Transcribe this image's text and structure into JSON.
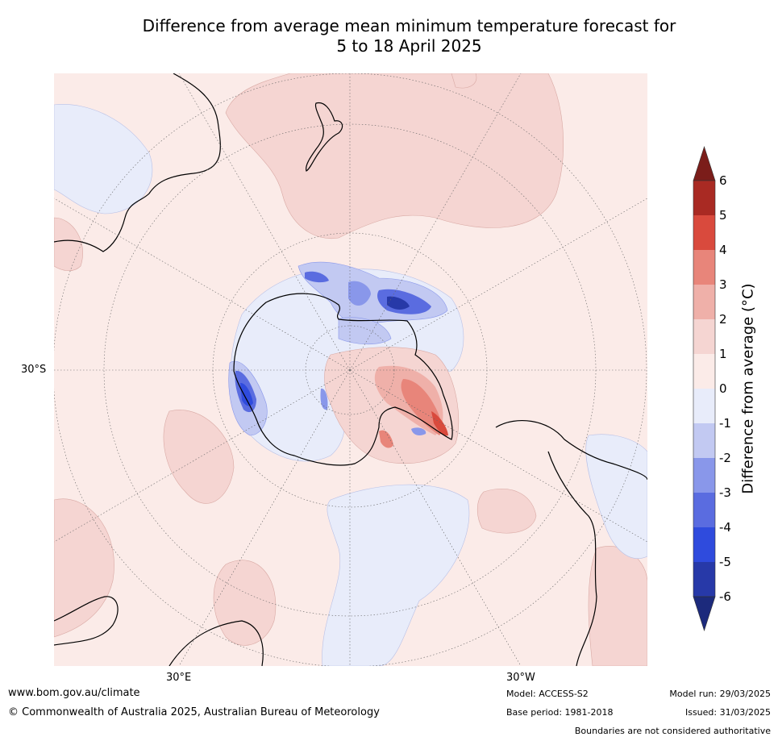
{
  "title": {
    "line1": "Difference from average mean minimum temperature forecast for",
    "line2": "5 to 18 April 2025"
  },
  "colorbar": {
    "label": "Difference from average (°C)",
    "ticks": [
      "6",
      "5",
      "4",
      "3",
      "2",
      "1",
      "0",
      "-1",
      "-2",
      "-3",
      "-4",
      "-5",
      "-6"
    ],
    "levels": [
      {
        "range": "above 6",
        "color": "#7b1d1a"
      },
      {
        "range": "5 to 6",
        "color": "#a92a23"
      },
      {
        "range": "4 to 5",
        "color": "#d94a3d"
      },
      {
        "range": "3 to 4",
        "color": "#e8857a"
      },
      {
        "range": "2 to 3",
        "color": "#efb0a9"
      },
      {
        "range": "1 to 2",
        "color": "#f5d5d2"
      },
      {
        "range": "0 to 1",
        "color": "#fbebe8"
      },
      {
        "range": "-1 to 0",
        "color": "#e8ecfa"
      },
      {
        "range": "-2 to -1",
        "color": "#c2c9f2"
      },
      {
        "range": "-3 to -2",
        "color": "#8997ea"
      },
      {
        "range": "-4 to -3",
        "color": "#5a6ce0"
      },
      {
        "range": "-5 to -4",
        "color": "#2f4bdd"
      },
      {
        "range": "-6 to -5",
        "color": "#2739a8"
      },
      {
        "range": "below -6",
        "color": "#1c2a7c"
      }
    ]
  },
  "map": {
    "lat_label": "30°S",
    "lon_labels": [
      "30°E",
      "30°W"
    ],
    "land_outline_color": "#000000",
    "grid_color": "#666666"
  },
  "footer": {
    "url": "www.bom.gov.au/climate",
    "copyright": "© Commonwealth of Australia 2025, Australian Bureau of Meteorology",
    "model": "Model: ACCESS-S2",
    "base_period": "Base period: 1981-2018",
    "model_run": "Model run: 29/03/2025",
    "issued": "Issued: 31/03/2025",
    "disclaimer": "Boundaries are not considered authoritative"
  }
}
